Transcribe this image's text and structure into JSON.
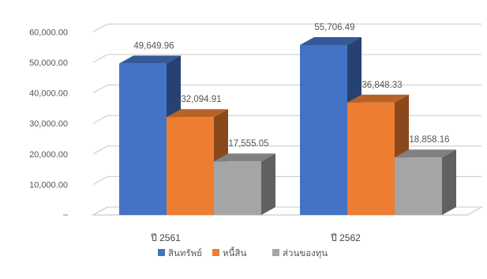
{
  "chart_data": {
    "type": "bar",
    "title": "",
    "xlabel": "",
    "ylabel": "",
    "categories": [
      "ปี 2561",
      "ปี 2562"
    ],
    "series": [
      {
        "name": "สินทรัพย์",
        "color": "#4472C4",
        "values": [
          49649.96,
          55706.49
        ],
        "labels": [
          "49,649.96",
          "55,706.49"
        ]
      },
      {
        "name": "หนี้สิน",
        "color": "#ED7D31",
        "values": [
          32094.91,
          36848.33
        ],
        "labels": [
          "32,094.91",
          "36,848.33"
        ]
      },
      {
        "name": "ส่วนของทุน",
        "color": "#A5A5A5",
        "values": [
          17555.05,
          18858.16
        ],
        "labels": [
          "17,555.05",
          "18,858.16"
        ]
      }
    ],
    "ylim": [
      0,
      60000
    ],
    "y_ticks": [
      "",
      "10,000.00",
      "20,000.00",
      "30,000.00",
      "40,000.00",
      "50,000.00",
      "60,000.00"
    ],
    "grid": true,
    "three_d": true,
    "legend_position": "bottom"
  }
}
